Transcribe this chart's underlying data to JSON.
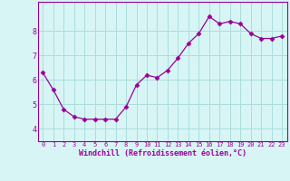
{
  "x": [
    0,
    1,
    2,
    3,
    4,
    5,
    6,
    7,
    8,
    9,
    10,
    11,
    12,
    13,
    14,
    15,
    16,
    17,
    18,
    19,
    20,
    21,
    22,
    23
  ],
  "y": [
    6.3,
    5.6,
    4.8,
    4.5,
    4.4,
    4.4,
    4.4,
    4.4,
    4.9,
    5.8,
    6.2,
    6.1,
    6.4,
    6.9,
    7.5,
    7.9,
    8.6,
    8.3,
    8.4,
    8.3,
    7.9,
    7.7,
    7.7,
    7.8
  ],
  "line_color": "#990099",
  "marker": "D",
  "marker_size": 2.5,
  "bg_color": "#d8f5f5",
  "grid_color": "#aadddd",
  "xlabel": "Windchill (Refroidissement éolien,°C)",
  "xlabel_color": "#990099",
  "tick_color": "#990099",
  "ylim": [
    3.5,
    9.2
  ],
  "xlim": [
    -0.5,
    23.5
  ],
  "yticks": [
    4,
    5,
    6,
    7,
    8
  ],
  "xticks": [
    0,
    1,
    2,
    3,
    4,
    5,
    6,
    7,
    8,
    9,
    10,
    11,
    12,
    13,
    14,
    15,
    16,
    17,
    18,
    19,
    20,
    21,
    22,
    23
  ],
  "xtick_labels": [
    "0",
    "1",
    "2",
    "3",
    "4",
    "5",
    "6",
    "7",
    "8",
    "9",
    "10",
    "11",
    "12",
    "13",
    "14",
    "15",
    "16",
    "17",
    "18",
    "19",
    "20",
    "21",
    "22",
    "23"
  ]
}
